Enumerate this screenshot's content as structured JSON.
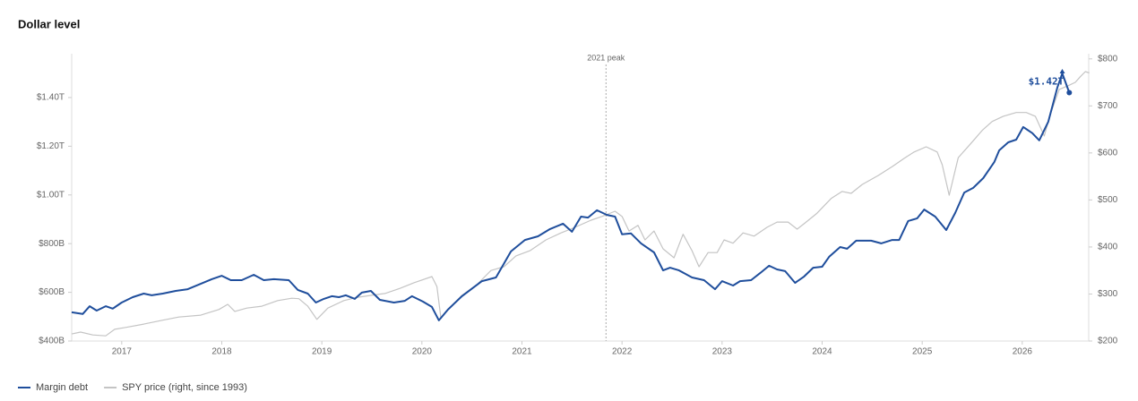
{
  "chart_data": {
    "type": "line",
    "title": "Dollar level",
    "xlim": [
      2016.5,
      2026.7
    ],
    "xticks": [
      2017,
      2018,
      2019,
      2020,
      2021,
      2022,
      2023,
      2024,
      2025,
      2026
    ],
    "ylim": [
      400,
      1580
    ],
    "yticks": [
      {
        "value": 400,
        "label": "$400B"
      },
      {
        "value": 600,
        "label": "$600B"
      },
      {
        "value": 800,
        "label": "$800B"
      },
      {
        "value": 1000,
        "label": "$1.00T"
      },
      {
        "value": 1200,
        "label": "$1.20T"
      },
      {
        "value": 1400,
        "label": "$1.40T"
      }
    ],
    "y2lim": [
      200,
      811
    ],
    "y2ticks": [
      {
        "value": 200,
        "label": "$200"
      },
      {
        "value": 300,
        "label": "$300"
      },
      {
        "value": 400,
        "label": "$400"
      },
      {
        "value": 500,
        "label": "$500"
      },
      {
        "value": 600,
        "label": "$600"
      },
      {
        "value": 700,
        "label": "$700"
      },
      {
        "value": 800,
        "label": "$800"
      }
    ],
    "annotations": [
      {
        "text": "2021 peak",
        "x": 2021.84
      },
      {
        "text": "$1.42T",
        "x": 2026.47,
        "y": 1420
      }
    ],
    "series": [
      {
        "name": "Margin debt",
        "color": "#1f4e9c",
        "axis": "y",
        "x": [
          2016.5,
          2016.61,
          2016.68,
          2016.75,
          2016.84,
          2016.91,
          2017.0,
          2017.11,
          2017.22,
          2017.3,
          2017.41,
          2017.54,
          2017.66,
          2017.79,
          2017.9,
          2018.0,
          2018.09,
          2018.2,
          2018.32,
          2018.42,
          2018.52,
          2018.67,
          2018.76,
          2018.86,
          2018.94,
          2019.02,
          2019.1,
          2019.17,
          2019.24,
          2019.33,
          2019.4,
          2019.49,
          2019.58,
          2019.72,
          2019.83,
          2019.9,
          2020.01,
          2020.1,
          2020.17,
          2020.26,
          2020.4,
          2020.6,
          2020.74,
          2020.89,
          2021.03,
          2021.16,
          2021.28,
          2021.41,
          2021.5,
          2021.59,
          2021.66,
          2021.75,
          2021.85,
          2021.93,
          2022.0,
          2022.09,
          2022.19,
          2022.32,
          2022.41,
          2022.48,
          2022.57,
          2022.7,
          2022.82,
          2022.93,
          2023.0,
          2023.11,
          2023.18,
          2023.29,
          2023.38,
          2023.47,
          2023.55,
          2023.63,
          2023.73,
          2023.82,
          2023.91,
          2024.0,
          2024.07,
          2024.18,
          2024.25,
          2024.34,
          2024.49,
          2024.59,
          2024.7,
          2024.77,
          2024.86,
          2024.95,
          2025.02,
          2025.13,
          2025.24,
          2025.33,
          2025.42,
          2025.51,
          2025.61,
          2025.72,
          2025.77,
          2025.86,
          2025.94,
          2026.01,
          2026.1,
          2026.17,
          2026.26,
          2026.35,
          2026.4,
          2026.47
        ],
        "values": [
          518,
          511,
          543,
          525,
          543,
          533,
          558,
          580,
          595,
          588,
          595,
          606,
          613,
          635,
          654,
          668,
          650,
          650,
          672,
          650,
          654,
          650,
          610,
          595,
          558,
          573,
          584,
          580,
          588,
          573,
          599,
          606,
          569,
          558,
          565,
          584,
          562,
          540,
          485,
          529,
          584,
          646,
          661,
          768,
          815,
          830,
          860,
          882,
          849,
          911,
          907,
          937,
          918,
          911,
          838,
          842,
          801,
          764,
          690,
          701,
          690,
          661,
          650,
          613,
          646,
          628,
          646,
          650,
          679,
          709,
          694,
          687,
          639,
          665,
          701,
          705,
          746,
          786,
          779,
          812,
          812,
          801,
          815,
          815,
          893,
          904,
          940,
          911,
          856,
          926,
          1010,
          1029,
          1069,
          1135,
          1183,
          1216,
          1227,
          1279,
          1254,
          1224,
          1301,
          1440,
          1499,
          1420
        ]
      },
      {
        "name": "SPY price (right, since 1993)",
        "color": "#c4c4c4",
        "axis": "y2",
        "x": [
          2016.5,
          2016.59,
          2016.71,
          2016.84,
          2016.93,
          2017.04,
          2017.22,
          2017.4,
          2017.57,
          2017.79,
          2017.97,
          2018.06,
          2018.13,
          2018.25,
          2018.4,
          2018.56,
          2018.7,
          2018.77,
          2018.86,
          2018.95,
          2019.06,
          2019.22,
          2019.36,
          2019.49,
          2019.63,
          2019.78,
          2019.92,
          2020.1,
          2020.15,
          2020.19,
          2020.26,
          2020.4,
          2020.55,
          2020.69,
          2020.82,
          2020.94,
          2021.08,
          2021.24,
          2021.39,
          2021.51,
          2021.69,
          2021.8,
          2021.93,
          2022.0,
          2022.07,
          2022.16,
          2022.23,
          2022.32,
          2022.41,
          2022.52,
          2022.61,
          2022.7,
          2022.77,
          2022.86,
          2022.95,
          2023.02,
          2023.11,
          2023.21,
          2023.32,
          2023.45,
          2023.55,
          2023.66,
          2023.75,
          2023.84,
          2023.95,
          2024.09,
          2024.2,
          2024.29,
          2024.4,
          2024.56,
          2024.7,
          2024.83,
          2024.92,
          2025.04,
          2025.15,
          2025.2,
          2025.27,
          2025.36,
          2025.49,
          2025.6,
          2025.7,
          2025.81,
          2025.94,
          2026.04,
          2026.13,
          2026.22,
          2026.28,
          2026.37,
          2026.46,
          2026.53,
          2026.58,
          2026.63,
          2026.67
        ],
        "values": [
          215,
          219,
          213,
          211,
          225,
          229,
          236,
          244,
          251,
          255,
          267,
          278,
          263,
          270,
          274,
          286,
          291,
          290,
          274,
          246,
          270,
          286,
          293,
          297,
          301,
          312,
          324,
          337,
          316,
          248,
          267,
          297,
          320,
          350,
          358,
          381,
          392,
          415,
          430,
          440,
          457,
          465,
          476,
          465,
          434,
          446,
          415,
          434,
          396,
          377,
          427,
          392,
          358,
          388,
          388,
          415,
          408,
          430,
          423,
          442,
          453,
          453,
          438,
          453,
          472,
          503,
          518,
          514,
          533,
          552,
          571,
          590,
          602,
          613,
          602,
          575,
          510,
          590,
          621,
          648,
          667,
          678,
          686,
          686,
          678,
          636,
          682,
          735,
          743,
          750,
          762,
          773,
          770
        ]
      }
    ]
  }
}
